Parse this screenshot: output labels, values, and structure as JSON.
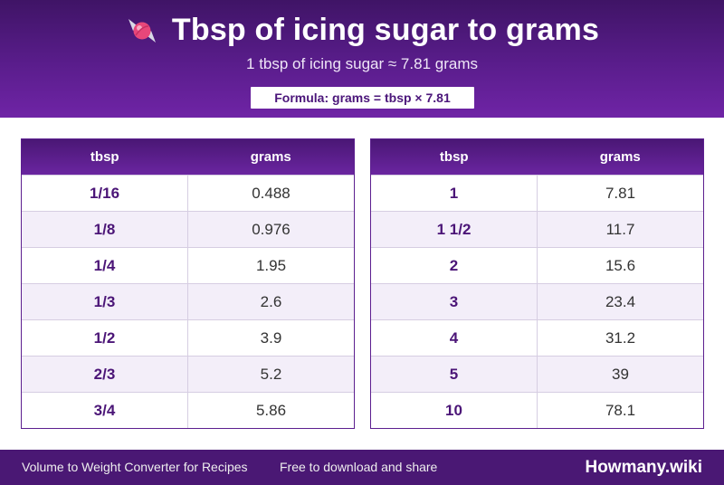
{
  "header": {
    "title": "Tbsp of icing sugar to grams",
    "icon": "candy-icon",
    "subtitle": "1 tbsp of icing sugar ≈ 7.81 grams",
    "formula": "Formula: grams = tbsp × 7.81"
  },
  "columns": {
    "tbsp": "tbsp",
    "grams": "grams"
  },
  "left_table": [
    {
      "tbsp": "1/16",
      "grams": "0.488"
    },
    {
      "tbsp": "1/8",
      "grams": "0.976"
    },
    {
      "tbsp": "1/4",
      "grams": "1.95"
    },
    {
      "tbsp": "1/3",
      "grams": "2.6"
    },
    {
      "tbsp": "1/2",
      "grams": "3.9"
    },
    {
      "tbsp": "2/3",
      "grams": "5.2"
    },
    {
      "tbsp": "3/4",
      "grams": "5.86"
    }
  ],
  "right_table": [
    {
      "tbsp": "1",
      "grams": "7.81"
    },
    {
      "tbsp": "1 1/2",
      "grams": "11.7"
    },
    {
      "tbsp": "2",
      "grams": "15.6"
    },
    {
      "tbsp": "3",
      "grams": "23.4"
    },
    {
      "tbsp": "4",
      "grams": "31.2"
    },
    {
      "tbsp": "5",
      "grams": "39"
    },
    {
      "tbsp": "10",
      "grams": "78.1"
    }
  ],
  "footer": {
    "left": "Volume to Weight Converter for Recipes",
    "middle": "Free to download and share",
    "brand": "Howmany.wiki"
  },
  "colors": {
    "header_dark": "#3f1466",
    "header_light": "#6f24a6",
    "accent_text": "#4b1577",
    "row_alt": "#f3eef9",
    "footer": "#4a1874"
  }
}
